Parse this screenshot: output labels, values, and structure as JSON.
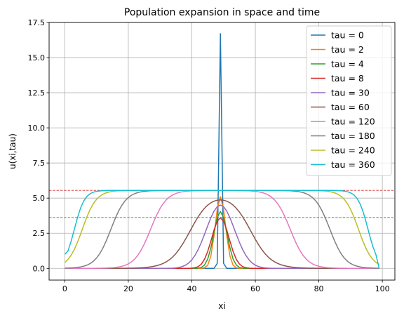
{
  "chart_data": {
    "type": "line",
    "title": "Population expansion in space and time",
    "xlabel": "xi",
    "ylabel": "u(xi,tau)",
    "xlim": [
      -4.95,
      103.95
    ],
    "ylim": [
      -0.835,
      17.5
    ],
    "xticks": [
      0,
      20,
      40,
      60,
      80,
      100
    ],
    "yticks": [
      0.0,
      2.5,
      5.0,
      7.5,
      10.0,
      12.5,
      15.0,
      17.5
    ],
    "xtick_labels": [
      "0",
      "20",
      "40",
      "60",
      "80",
      "100"
    ],
    "ytick_labels": [
      "0.0",
      "2.5",
      "5.0",
      "7.5",
      "10.0",
      "12.5",
      "15.0",
      "17.5"
    ],
    "grid": true,
    "legend_position": "top-right",
    "hlines": [
      {
        "y": 5.55,
        "color": "#d62728",
        "style": "dashed"
      },
      {
        "y": 3.62,
        "color": "#2ca02c",
        "style": "dashed"
      }
    ],
    "series": [
      {
        "name": "tau = 0",
        "color": "#1f77b4",
        "kind": "spike",
        "center": 49,
        "peak": 16.7
      },
      {
        "name": "tau = 2",
        "color": "#ff7f0e",
        "kind": "bump",
        "center": 49,
        "peak": 5.1,
        "width": 1.6
      },
      {
        "name": "tau = 4",
        "color": "#2ca02c",
        "kind": "bump",
        "center": 49,
        "peak": 4.05,
        "width": 2.1
      },
      {
        "name": "tau = 8",
        "color": "#d62728",
        "kind": "bump",
        "center": 49,
        "peak": 3.6,
        "width": 2.7
      },
      {
        "name": "tau = 30",
        "color": "#9467bd",
        "kind": "bump",
        "center": 49,
        "peak": 4.5,
        "width": 4.5
      },
      {
        "name": "tau = 60",
        "color": "#8c564b",
        "kind": "plateau",
        "center": 49,
        "peak": 5.4,
        "halfwidth": 9.5,
        "edge": 3.2
      },
      {
        "name": "tau = 120",
        "color": "#e377c2",
        "kind": "plateau",
        "center": 49,
        "peak": 5.55,
        "halfwidth": 22,
        "edge": 2.5
      },
      {
        "name": "tau = 180",
        "color": "#7f7f7f",
        "kind": "plateau",
        "center": 49,
        "peak": 5.55,
        "halfwidth": 34.5,
        "edge": 2.4
      },
      {
        "name": "tau = 240",
        "color": "#bcbd22",
        "kind": "plateau",
        "center": 49,
        "peak": 5.55,
        "halfwidth": 43.5,
        "edge": 2.2
      },
      {
        "name": "tau = 360",
        "color": "#17becf",
        "kind": "edgefront",
        "peak": 5.55,
        "left_start": 1.0,
        "right_end": 0.0,
        "edge": 1.6
      }
    ]
  }
}
